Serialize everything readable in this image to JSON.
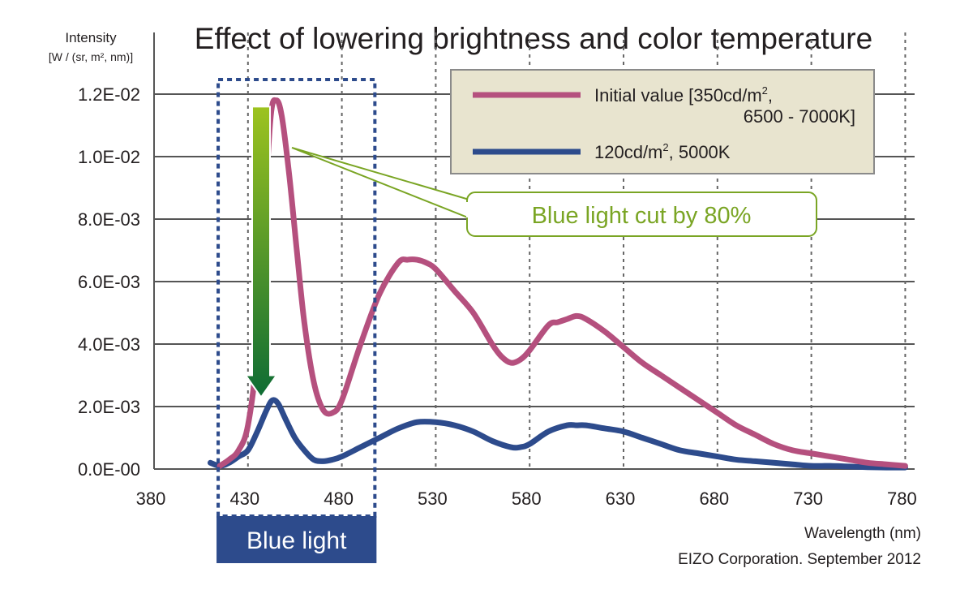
{
  "chart_data": {
    "type": "line",
    "title": "Effect of lowering brightness and color temperature",
    "ylabel_line1": "Intensity",
    "ylabel_line2": "[W / (sr, m², nm)]",
    "xlabel": "Wavelength (nm)",
    "credit": "EIZO Corporation. September 2012",
    "x_ticks": [
      380,
      430,
      480,
      530,
      580,
      630,
      680,
      730,
      780
    ],
    "y_ticks": [
      0,
      0.002,
      0.004,
      0.006,
      0.008,
      0.01,
      0.012
    ],
    "y_tick_labels": [
      "0.0E-00",
      "2.0E-03",
      "4.0E-03",
      "6.0E-03",
      "8.0E-03",
      "1.0E-02",
      "1.2E-02"
    ],
    "xlim": [
      380,
      785
    ],
    "ylim": [
      0,
      0.0122
    ],
    "grid": true,
    "legend_position": "top-right",
    "series": [
      {
        "name": "Initial value [350cd/m², 6500 - 7000K]",
        "legend_line1": "Initial value [350cd/m",
        "legend_line1_sup": "2",
        "legend_line1_end": ",",
        "legend_line2": "6500 - 7000K]",
        "color": "#b5507e",
        "x": [
          415,
          420,
          425,
          430,
          435,
          438,
          442,
          445,
          448,
          452,
          456,
          460,
          465,
          470,
          475,
          480,
          490,
          500,
          510,
          515,
          520,
          525,
          530,
          540,
          550,
          560,
          565,
          570,
          575,
          580,
          590,
          595,
          600,
          605,
          610,
          620,
          630,
          640,
          650,
          660,
          670,
          680,
          690,
          700,
          710,
          720,
          730,
          740,
          750,
          760,
          770,
          780
        ],
        "y": [
          0.0001,
          0.0003,
          0.0006,
          0.0014,
          0.0038,
          0.0072,
          0.0112,
          0.0118,
          0.0113,
          0.0094,
          0.007,
          0.0047,
          0.0028,
          0.0019,
          0.0018,
          0.0022,
          0.004,
          0.0056,
          0.0066,
          0.0067,
          0.0067,
          0.0066,
          0.0064,
          0.0057,
          0.005,
          0.004,
          0.0036,
          0.0034,
          0.0035,
          0.0038,
          0.0046,
          0.0047,
          0.0048,
          0.0049,
          0.0048,
          0.0044,
          0.0039,
          0.0034,
          0.003,
          0.0026,
          0.0022,
          0.0018,
          0.0014,
          0.0011,
          0.0008,
          0.0006,
          0.0005,
          0.0004,
          0.0003,
          0.0002,
          0.00015,
          0.0001
        ]
      },
      {
        "name": "120cd/m², 5000K",
        "legend_line1": "120cd/m",
        "legend_line1_sup": "2",
        "legend_line1_end": ", 5000K",
        "color": "#2d4b8c",
        "x": [
          410,
          415,
          420,
          425,
          430,
          435,
          440,
          443,
          446,
          450,
          455,
          460,
          465,
          470,
          475,
          480,
          490,
          500,
          510,
          520,
          530,
          540,
          550,
          560,
          570,
          575,
          580,
          590,
          600,
          605,
          610,
          620,
          630,
          640,
          650,
          660,
          670,
          680,
          690,
          700,
          710,
          720,
          730,
          740,
          750,
          760,
          770,
          780
        ],
        "y": [
          0.0002,
          0.0001,
          0.0002,
          0.0004,
          0.0006,
          0.0012,
          0.0019,
          0.0022,
          0.0021,
          0.0016,
          0.001,
          0.0006,
          0.0003,
          0.00025,
          0.0003,
          0.0004,
          0.0007,
          0.001,
          0.0013,
          0.0015,
          0.0015,
          0.0014,
          0.0012,
          0.0009,
          0.0007,
          0.0007,
          0.0008,
          0.0012,
          0.0014,
          0.0014,
          0.0014,
          0.0013,
          0.0012,
          0.001,
          0.0008,
          0.0006,
          0.0005,
          0.0004,
          0.0003,
          0.00025,
          0.0002,
          0.00015,
          0.0001,
          0.0001,
          8e-05,
          6e-05,
          5e-05,
          5e-05
        ]
      }
    ],
    "annotations": {
      "callout": "Blue light cut by 80%",
      "callout_color": "#7aa524",
      "band_label": "Blue light",
      "band_range": [
        415,
        495
      ],
      "band_color": "#2d4b8c",
      "arrow_color_top": "#9dc31f",
      "arrow_color_bottom": "#0e6c34",
      "legend_bg": "#e8e4cf"
    }
  }
}
